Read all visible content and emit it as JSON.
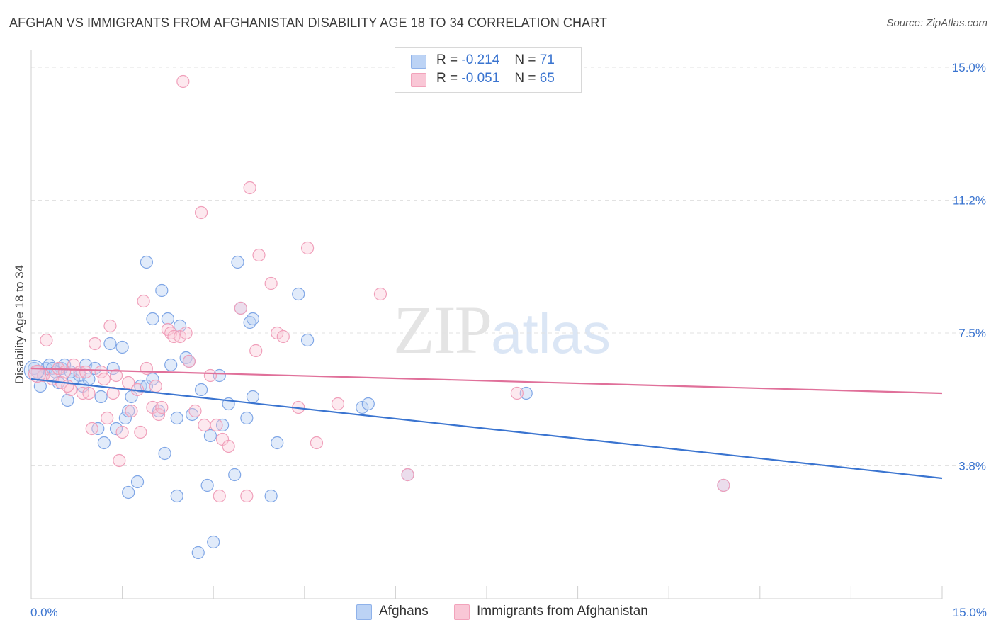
{
  "title": "AFGHAN VS IMMIGRANTS FROM AFGHANISTAN DISABILITY AGE 18 TO 34 CORRELATION CHART",
  "source": "Source: ZipAtlas.com",
  "watermark": {
    "zip": "ZIP",
    "atlas": "atlas"
  },
  "legend": {
    "r_label": "R =",
    "n_label": "N =",
    "rows": [
      {
        "r": "-0.214",
        "n": "71"
      },
      {
        "r": "-0.051",
        "n": "65"
      }
    ]
  },
  "colors": {
    "blue": "#3a74d0",
    "blue_fill": "#bcd3f5",
    "pink": "#e0709a",
    "pink_fill": "#f9c7d6",
    "axis_text": "#3a74d0"
  },
  "chart_data": {
    "type": "scatter",
    "ylabel": "Disability Age 18 to 34",
    "xlabel": "",
    "xlim": [
      0,
      15
    ],
    "ylim": [
      0,
      15.5
    ],
    "x_tick_labels": [
      "0.0%",
      "15.0%"
    ],
    "y_tick_labels": [
      "15.0%",
      "11.2%",
      "7.5%",
      "3.8%"
    ],
    "y_ticks": [
      15.0,
      11.25,
      7.5,
      3.75
    ],
    "series": [
      {
        "name": "Afghans",
        "color": "#3a74d0",
        "trend": {
          "x": [
            0,
            15
          ],
          "y": [
            6.2,
            3.4
          ]
        },
        "points": [
          [
            0.1,
            6.4
          ],
          [
            0.15,
            6.0
          ],
          [
            0.2,
            6.3
          ],
          [
            0.25,
            6.5
          ],
          [
            0.3,
            6.6
          ],
          [
            0.35,
            6.5
          ],
          [
            0.45,
            6.1
          ],
          [
            0.5,
            6.5
          ],
          [
            0.55,
            6.6
          ],
          [
            0.6,
            5.6
          ],
          [
            0.7,
            6.2
          ],
          [
            0.8,
            6.3
          ],
          [
            0.85,
            6.0
          ],
          [
            0.9,
            6.6
          ],
          [
            0.95,
            6.2
          ],
          [
            1.05,
            6.5
          ],
          [
            1.1,
            4.8
          ],
          [
            1.15,
            5.7
          ],
          [
            1.2,
            4.4
          ],
          [
            1.3,
            7.2
          ],
          [
            1.35,
            6.5
          ],
          [
            1.4,
            4.8
          ],
          [
            1.5,
            7.1
          ],
          [
            1.55,
            5.1
          ],
          [
            1.6,
            5.3
          ],
          [
            1.6,
            3.0
          ],
          [
            1.65,
            5.7
          ],
          [
            1.75,
            3.3
          ],
          [
            1.8,
            6.0
          ],
          [
            1.9,
            6.0
          ],
          [
            1.9,
            9.5
          ],
          [
            2.0,
            7.9
          ],
          [
            2.0,
            6.2
          ],
          [
            2.1,
            5.3
          ],
          [
            2.15,
            8.7
          ],
          [
            2.2,
            4.1
          ],
          [
            2.25,
            7.9
          ],
          [
            2.3,
            6.6
          ],
          [
            2.4,
            2.9
          ],
          [
            2.4,
            5.1
          ],
          [
            2.45,
            7.7
          ],
          [
            2.55,
            6.8
          ],
          [
            2.6,
            6.7
          ],
          [
            2.65,
            5.2
          ],
          [
            2.75,
            1.3
          ],
          [
            2.8,
            5.9
          ],
          [
            2.9,
            3.2
          ],
          [
            2.95,
            4.6
          ],
          [
            3.0,
            1.6
          ],
          [
            3.1,
            6.3
          ],
          [
            3.15,
            4.9
          ],
          [
            3.25,
            5.5
          ],
          [
            3.35,
            3.5
          ],
          [
            3.4,
            9.5
          ],
          [
            3.45,
            8.2
          ],
          [
            3.55,
            5.1
          ],
          [
            3.6,
            7.8
          ],
          [
            3.65,
            7.9
          ],
          [
            3.65,
            5.7
          ],
          [
            3.95,
            2.9
          ],
          [
            4.05,
            4.4
          ],
          [
            4.4,
            8.6
          ],
          [
            4.55,
            7.3
          ],
          [
            5.45,
            5.4
          ],
          [
            5.55,
            5.5
          ],
          [
            6.2,
            3.5
          ],
          [
            8.15,
            5.8
          ],
          [
            11.4,
            3.2
          ],
          [
            0.05,
            6.5
          ],
          [
            0.4,
            6.4
          ],
          [
            0.65,
            6.4
          ]
        ]
      },
      {
        "name": "Immigrants from Afghanistan",
        "color": "#e0709a",
        "trend": {
          "x": [
            0,
            15
          ],
          "y": [
            6.5,
            5.8
          ]
        },
        "points": [
          [
            0.1,
            6.4
          ],
          [
            0.2,
            6.3
          ],
          [
            0.25,
            7.3
          ],
          [
            0.35,
            6.2
          ],
          [
            0.45,
            6.5
          ],
          [
            0.5,
            6.1
          ],
          [
            0.55,
            6.4
          ],
          [
            0.65,
            5.9
          ],
          [
            0.7,
            6.6
          ],
          [
            0.8,
            6.4
          ],
          [
            0.85,
            5.8
          ],
          [
            0.9,
            6.4
          ],
          [
            0.95,
            5.8
          ],
          [
            1.0,
            4.8
          ],
          [
            1.05,
            7.2
          ],
          [
            1.15,
            6.4
          ],
          [
            1.2,
            6.2
          ],
          [
            1.25,
            5.1
          ],
          [
            1.3,
            7.7
          ],
          [
            1.35,
            5.8
          ],
          [
            1.4,
            6.3
          ],
          [
            1.45,
            3.9
          ],
          [
            1.5,
            4.7
          ],
          [
            1.6,
            6.1
          ],
          [
            1.65,
            5.3
          ],
          [
            1.75,
            5.9
          ],
          [
            1.8,
            4.7
          ],
          [
            1.85,
            8.4
          ],
          [
            1.9,
            6.5
          ],
          [
            2.0,
            5.4
          ],
          [
            2.05,
            6.0
          ],
          [
            2.1,
            5.2
          ],
          [
            2.15,
            5.4
          ],
          [
            2.25,
            7.6
          ],
          [
            2.3,
            7.5
          ],
          [
            2.35,
            7.4
          ],
          [
            2.45,
            7.4
          ],
          [
            2.5,
            14.6
          ],
          [
            2.55,
            7.5
          ],
          [
            2.6,
            6.7
          ],
          [
            2.7,
            5.3
          ],
          [
            2.8,
            10.9
          ],
          [
            2.85,
            4.9
          ],
          [
            2.95,
            6.3
          ],
          [
            3.05,
            4.9
          ],
          [
            3.1,
            2.9
          ],
          [
            3.15,
            4.5
          ],
          [
            3.25,
            4.3
          ],
          [
            3.55,
            2.9
          ],
          [
            3.6,
            11.6
          ],
          [
            3.7,
            7.0
          ],
          [
            3.75,
            9.7
          ],
          [
            3.95,
            8.9
          ],
          [
            4.05,
            7.5
          ],
          [
            4.15,
            7.4
          ],
          [
            4.4,
            5.4
          ],
          [
            4.55,
            9.9
          ],
          [
            4.7,
            4.4
          ],
          [
            5.05,
            5.5
          ],
          [
            5.75,
            8.6
          ],
          [
            6.2,
            3.5
          ],
          [
            8.0,
            5.8
          ],
          [
            11.4,
            3.2
          ],
          [
            3.45,
            8.2
          ],
          [
            0.6,
            6.0
          ]
        ]
      }
    ]
  }
}
